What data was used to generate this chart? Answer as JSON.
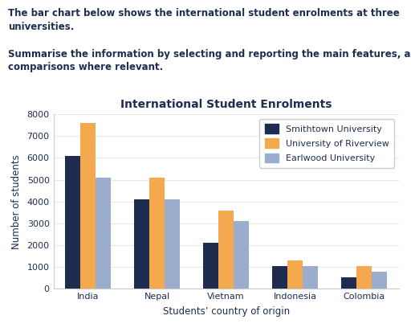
{
  "title": "International Student Enrolments",
  "xlabel": "Students’ country of origin",
  "ylabel": "Number of students",
  "categories": [
    "India",
    "Nepal",
    "Vietnam",
    "Indonesia",
    "Colombia"
  ],
  "series": [
    {
      "name": "Smithtown University",
      "color": "#1e2d4f",
      "values": [
        6100,
        4100,
        2100,
        1050,
        550
      ]
    },
    {
      "name": "University of Riverview",
      "color": "#f5a94e",
      "values": [
        7600,
        5100,
        3600,
        1300,
        1050
      ]
    },
    {
      "name": "Earlwood University",
      "color": "#9aadcc",
      "values": [
        5100,
        4100,
        3100,
        1050,
        800
      ]
    }
  ],
  "ylim": [
    0,
    8000
  ],
  "yticks": [
    0,
    1000,
    2000,
    3000,
    4000,
    5000,
    6000,
    7000,
    8000
  ],
  "bar_width": 0.22,
  "figsize": [
    5.12,
    4.18
  ],
  "dpi": 100,
  "background_color": "#ffffff",
  "header_color": "#1e2d4f",
  "title_fontsize": 10,
  "axis_label_fontsize": 8.5,
  "tick_fontsize": 8,
  "legend_fontsize": 8,
  "header_fontsize": 8.5,
  "header_lines": [
    {
      "text": "The bar chart below shows the international student enrolments at three",
      "bold": true
    },
    {
      "text": "universities.",
      "bold": true
    },
    {
      "text": "",
      "bold": false
    },
    {
      "text": "Summarise the information by selecting and reporting the main features, and make",
      "bold": true
    },
    {
      "text": "comparisons where relevant.",
      "bold": true
    }
  ]
}
